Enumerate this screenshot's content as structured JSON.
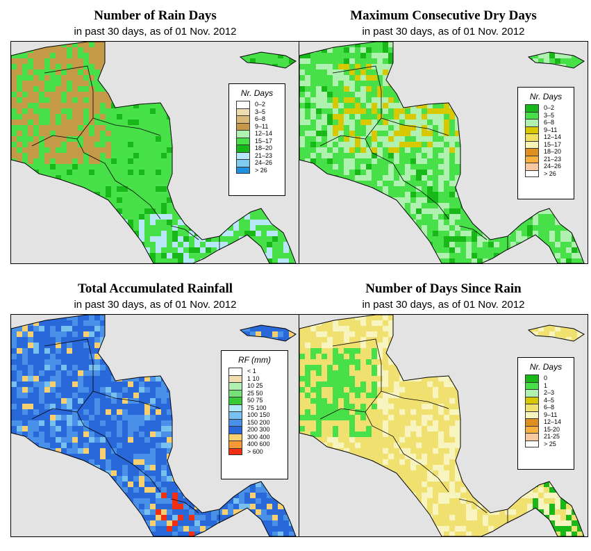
{
  "panels": [
    {
      "title": "Number of Rain Days",
      "subtitle": "in past 30 days, as of  01 Nov. 2012",
      "legend": {
        "title": "Nr. Days",
        "items": [
          {
            "label": "0–2",
            "color": "#ffffff"
          },
          {
            "label": "3–5",
            "color": "#ecdcb0"
          },
          {
            "label": "6–8",
            "color": "#d8b878"
          },
          {
            "label": "9–11",
            "color": "#c49a48"
          },
          {
            "label": "12–14",
            "color": "#b0f0b0"
          },
          {
            "label": "15–17",
            "color": "#48e048"
          },
          {
            "label": "18–20",
            "color": "#18b818"
          },
          {
            "label": "21–23",
            "color": "#b8e8f8"
          },
          {
            "label": "24–26",
            "color": "#80ccf0"
          },
          {
            "label": "> 26",
            "color": "#2090e0"
          }
        ]
      }
    },
    {
      "title": "Maximum Consecutive Dry Days",
      "subtitle": "in past 30 days, as of  01 Nov. 2012",
      "legend": {
        "title": "Nr. Days",
        "items": [
          {
            "label": "0–2",
            "color": "#18b818"
          },
          {
            "label": "3–5",
            "color": "#48e048"
          },
          {
            "label": "6–8",
            "color": "#b0f0b0"
          },
          {
            "label": "9–11",
            "color": "#d8c800"
          },
          {
            "label": "12–14",
            "color": "#f0e060"
          },
          {
            "label": "15–17",
            "color": "#f8f4b8"
          },
          {
            "label": "18–20",
            "color": "#e09020"
          },
          {
            "label": "21–23",
            "color": "#f8b040"
          },
          {
            "label": "24–26",
            "color": "#f8c8a0"
          },
          {
            "label": "> 26",
            "color": "#ffffff"
          }
        ]
      }
    },
    {
      "title": "Total Accumulated Rainfall",
      "subtitle": "in past 30 days, as of  01 Nov. 2012",
      "legend": {
        "title": "RF (mm)",
        "items": [
          {
            "label": "< 1",
            "color": "#ffffff"
          },
          {
            "label": "1  10",
            "color": "#f0dcb0"
          },
          {
            "label": "10  25",
            "color": "#b0f0b0"
          },
          {
            "label": "25  50",
            "color": "#78e078"
          },
          {
            "label": "50  75",
            "color": "#38c838"
          },
          {
            "label": "75  100",
            "color": "#b0e8f8"
          },
          {
            "label": "100  150",
            "color": "#78c0f0"
          },
          {
            "label": "150  200",
            "color": "#4890e8"
          },
          {
            "label": "200  300",
            "color": "#2868d8"
          },
          {
            "label": "300  400",
            "color": "#f8d070"
          },
          {
            "label": "400  600",
            "color": "#f89838"
          },
          {
            "label": "> 600",
            "color": "#f03010"
          }
        ]
      }
    },
    {
      "title": "Number of Days Since Rain",
      "subtitle": "in past 30 days, as of  01 Nov. 2012",
      "legend": {
        "title": "Nr. Days",
        "items": [
          {
            "label": "0",
            "color": "#18b818"
          },
          {
            "label": "1",
            "color": "#48e048"
          },
          {
            "label": "2–3",
            "color": "#b0f0b0"
          },
          {
            "label": "4–5",
            "color": "#d8c800"
          },
          {
            "label": "6–8",
            "color": "#f0e070"
          },
          {
            "label": "9–11",
            "color": "#f8f4c0"
          },
          {
            "label": "12–14",
            "color": "#e09020"
          },
          {
            "label": "15-20",
            "color": "#f8b040"
          },
          {
            "label": "21-25",
            "color": "#f8c8a0"
          },
          {
            "label": "> 25",
            "color": "#ffffff"
          }
        ]
      }
    }
  ],
  "fills": {
    "p0": {
      "base": "#48e048",
      "a": "#c49a48",
      "b": "#18b818",
      "c": "#b8e8f8",
      "d": "#2090e0"
    },
    "p1": {
      "base": "#48e048",
      "a": "#b0f0b0",
      "b": "#d8c800",
      "c": "#18b818"
    },
    "p2": {
      "base": "#2868d8",
      "a": "#4890e8",
      "b": "#f8d070",
      "c": "#f03010",
      "d": "#78c0f0"
    },
    "p3": {
      "base": "#f0e070",
      "a": "#f8f4c0",
      "b": "#18b818",
      "c": "#48e048"
    }
  }
}
